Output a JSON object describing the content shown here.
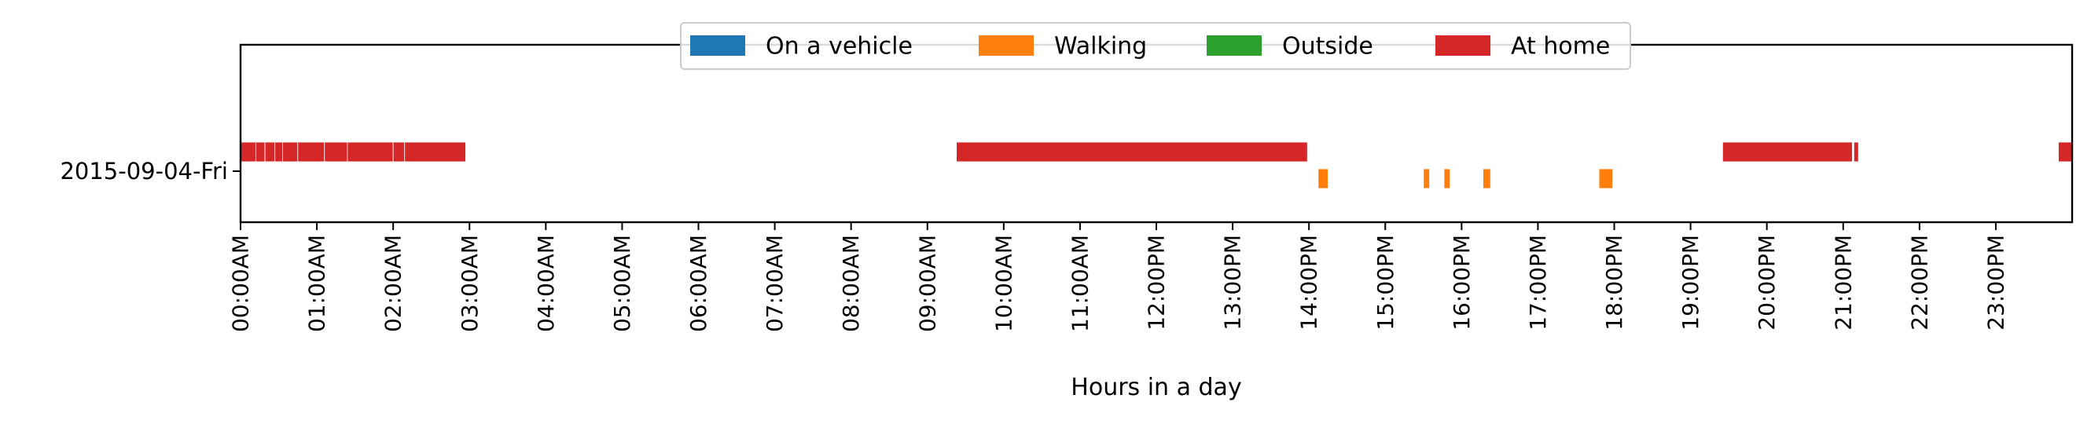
{
  "chart_data": {
    "type": "timeline",
    "title": "",
    "xlabel": "Hours in a day",
    "ylabel": "",
    "xlim": [
      0,
      24
    ],
    "x_ticks": [
      {
        "value": 0,
        "label": "00:00AM"
      },
      {
        "value": 1,
        "label": "01:00AM"
      },
      {
        "value": 2,
        "label": "02:00AM"
      },
      {
        "value": 3,
        "label": "03:00AM"
      },
      {
        "value": 4,
        "label": "04:00AM"
      },
      {
        "value": 5,
        "label": "05:00AM"
      },
      {
        "value": 6,
        "label": "06:00AM"
      },
      {
        "value": 7,
        "label": "07:00AM"
      },
      {
        "value": 8,
        "label": "08:00AM"
      },
      {
        "value": 9,
        "label": "09:00AM"
      },
      {
        "value": 10,
        "label": "10:00AM"
      },
      {
        "value": 11,
        "label": "11:00AM"
      },
      {
        "value": 12,
        "label": "12:00PM"
      },
      {
        "value": 13,
        "label": "13:00PM"
      },
      {
        "value": 14,
        "label": "14:00PM"
      },
      {
        "value": 15,
        "label": "15:00PM"
      },
      {
        "value": 16,
        "label": "16:00PM"
      },
      {
        "value": 17,
        "label": "17:00PM"
      },
      {
        "value": 18,
        "label": "18:00PM"
      },
      {
        "value": 19,
        "label": "19:00PM"
      },
      {
        "value": 20,
        "label": "20:00PM"
      },
      {
        "value": 21,
        "label": "21:00PM"
      },
      {
        "value": 22,
        "label": "22:00PM"
      },
      {
        "value": 23,
        "label": "23:00PM"
      }
    ],
    "categories": [
      "2015-09-04-Fri"
    ],
    "grid": false,
    "legend_position": "top-center",
    "series": [
      {
        "name": "On a vehicle",
        "color": "#1f77b4",
        "intervals": []
      },
      {
        "name": "Walking",
        "color": "#ff7f0e",
        "intervals": [
          [
            14.12,
            14.25
          ],
          [
            15.5,
            15.58
          ],
          [
            15.77,
            15.85
          ],
          [
            16.28,
            16.38
          ],
          [
            17.8,
            17.98
          ]
        ]
      },
      {
        "name": "Outside",
        "color": "#2ca02c",
        "intervals": []
      },
      {
        "name": "At home",
        "color": "#d62728",
        "intervals": [
          [
            0.0,
            0.2
          ],
          [
            0.2,
            0.32
          ],
          [
            0.32,
            0.45
          ],
          [
            0.45,
            0.55
          ],
          [
            0.55,
            0.75
          ],
          [
            0.75,
            1.1
          ],
          [
            1.1,
            1.4
          ],
          [
            1.4,
            2.0
          ],
          [
            2.0,
            2.15
          ],
          [
            2.15,
            2.95
          ],
          [
            9.38,
            13.98
          ],
          [
            19.42,
            21.12
          ],
          [
            21.14,
            21.2
          ],
          [
            23.82,
            24.0
          ]
        ]
      }
    ]
  }
}
